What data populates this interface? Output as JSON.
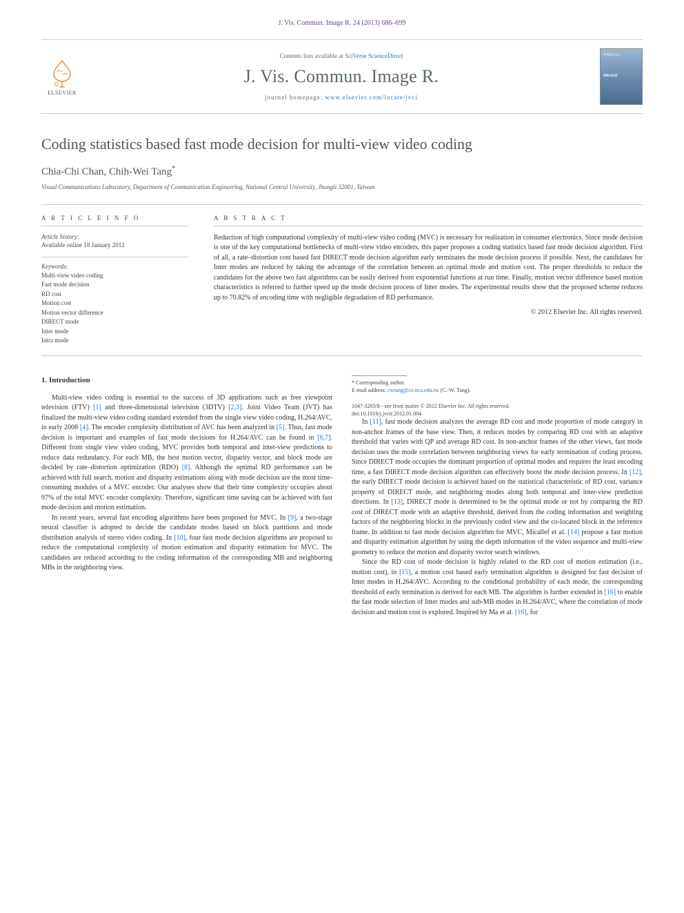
{
  "header": {
    "citation": "J. Vis. Commun. Image R. 24 (2013) 686–699",
    "contents_prefix": "Contents lists available at ",
    "contents_link": "SciVerse ScienceDirect",
    "journal_name": "J. Vis. Commun. Image R.",
    "homepage_prefix": "journal homepage: ",
    "homepage_url": "www.elsevier.com/locate/jvci",
    "publisher_name": "ELSEVIER"
  },
  "article": {
    "title": "Coding statistics based fast mode decision for multi-view video coding",
    "authors": "Chia-Chi Chan, Chih-Wei Tang",
    "corr_mark": "*",
    "affiliation": "Visual Communications Laboratory, Department of Communication Engineering, National Central University, Jhongli 32001, Taiwan"
  },
  "info": {
    "section_label": "A R T I C L E   I N F O",
    "history_label": "Article history:",
    "history_value": "Available online 18 January 2012",
    "keywords_label": "Keywords:",
    "keywords": [
      "Multi-view video coding",
      "Fast mode decision",
      "RD cost",
      "Motion cost",
      "Motion vector difference",
      "DIRECT mode",
      "Inter mode",
      "Intra mode"
    ]
  },
  "abstract": {
    "section_label": "A B S T R A C T",
    "text": "Reduction of high computational complexity of multi-view video coding (MVC) is necessary for realization in consumer electronics. Since mode decision is one of the key computational bottlenecks of multi-view video encoders, this paper proposes a coding statistics based fast mode decision algorithm. First of all, a rate–distortion cost based fast DIRECT mode decision algorithm early terminates the mode decision process if possible. Next, the candidates for Inter modes are reduced by taking the advantage of the correlation between an optimal mode and motion cost. The proper thresholds to reduce the candidates for the above two fast algorithms can be easily derived from exponential functions at run time. Finally, motion vector difference based motion characteristics is referred to further speed up the mode decision process of Inter modes. The experimental results show that the proposed scheme reduces up to 70.82% of encoding time with negligible degradation of RD performance.",
    "copyright": "© 2012 Elsevier Inc. All rights reserved."
  },
  "body": {
    "heading": "1. Introduction",
    "p1": "Multi-view video coding is essential to the success of 3D applications such as free viewpoint television (FTV) [1] and three-dimensional television (3DTV) [2,3]. Joint Video Team (JVT) has finalized the multi-view video coding standard extended from the single view video coding, H.264/AVC, in early 2008 [4]. The encoder complexity distribution of AVC has been analyzed in [5]. Thus, fast mode decision is important and examples of fast mode decisions for H.264/AVC can be found in [6,7]. Different from single view video coding, MVC provides both temporal and inter-view predictions to reduce data redundancy. For each MB, the best motion vector, disparity vector, and block mode are decided by rate–distortion optimization (RDO) [8]. Although the optimal RD performance can be achieved with full search, motion and disparity estimations along with mode decision are the most time-consuming modules of a MVC encoder. Our analyses show that their time complexity occupies about 97% of the total MVC encoder complexity. Therefore, significant time saving can be achieved with fast mode decision and motion estimation.",
    "p2": "In recent years, several fast encoding algorithms have been proposed for MVC. In [9], a two-stage neural classifier is adopted to decide the candidate modes based on block partitions and mode distribution analysis of stereo video coding. In [10], four fast mode decision algorithms are proposed to reduce the computational complexity of motion estimation and disparity estimation for MVC. The candidates are reduced according to the coding information of the corresponding MB and neighboring MBs in the neighboring view.",
    "p3": "In [11], fast mode decision analyzes the average RD cost and mode proportion of mode category in non-anchor frames of the base view. Then, it reduces modes by comparing RD cost with an adaptive threshold that varies with QP and average RD cost. In non-anchor frames of the other views, fast mode decision uses the mode correlation between neighboring views for early termination of coding process. Since DIRECT mode occupies the dominant proportion of optimal modes and requires the least encoding time, a fast DIRECT mode decision algorithm can effectively boost the mode decision process. In [12], the early DIRECT mode decision is achieved based on the statistical characteristic of RD cost, variance property of DIRECT mode, and neighboring modes along both temporal and inter-view prediction directions. In [13], DIRECT mode is determined to be the optimal mode or not by comparing the RD cost of DIRECT mode with an adaptive threshold, derived from the coding information and weighting factors of the neighboring blocks in the previously coded view and the co-located block in the reference frame. In addition to fast mode decision algorithm for MVC, Micallef et al. [14] propose a fast motion and disparity estimation algorithm by using the depth information of the video sequence and multi-view geometry to reduce the motion and disparity vector search windows.",
    "p4": "Since the RD cost of mode decision is highly related to the RD cost of motion estimation (i.e., motion cost), in [15], a motion cost based early termination algorithm is designed for fast decision of Inter modes in H.264/AVC. According to the conditional probability of each mode, the corresponding threshold of early termination is derived for each MB. The algorithm is further extended in [16] to enable the fast mode selection of Inter modes and sub-MB modes in H.264/AVC, where the correlation of mode decision and motion cost is explored. Inspired by Ma et al. [16], for"
  },
  "footnote": {
    "corr_label": "* Corresponding author.",
    "email_label": "E-mail address: ",
    "email": "cwtang@ce.ncu.edu.tw",
    "email_name": " (C.-W. Tang)."
  },
  "footer": {
    "line1": "1047-3203/$ - see front matter © 2012 Elsevier Inc. All rights reserved.",
    "line2": "doi:10.1016/j.jvcir.2012.01.004"
  },
  "colors": {
    "link": "#2277cc",
    "header_purple": "#6b4a7a",
    "elsevier_orange": "#e67817",
    "journal_green": "#5a6b5a",
    "rule_gray": "#cccccc",
    "text": "#333333"
  }
}
